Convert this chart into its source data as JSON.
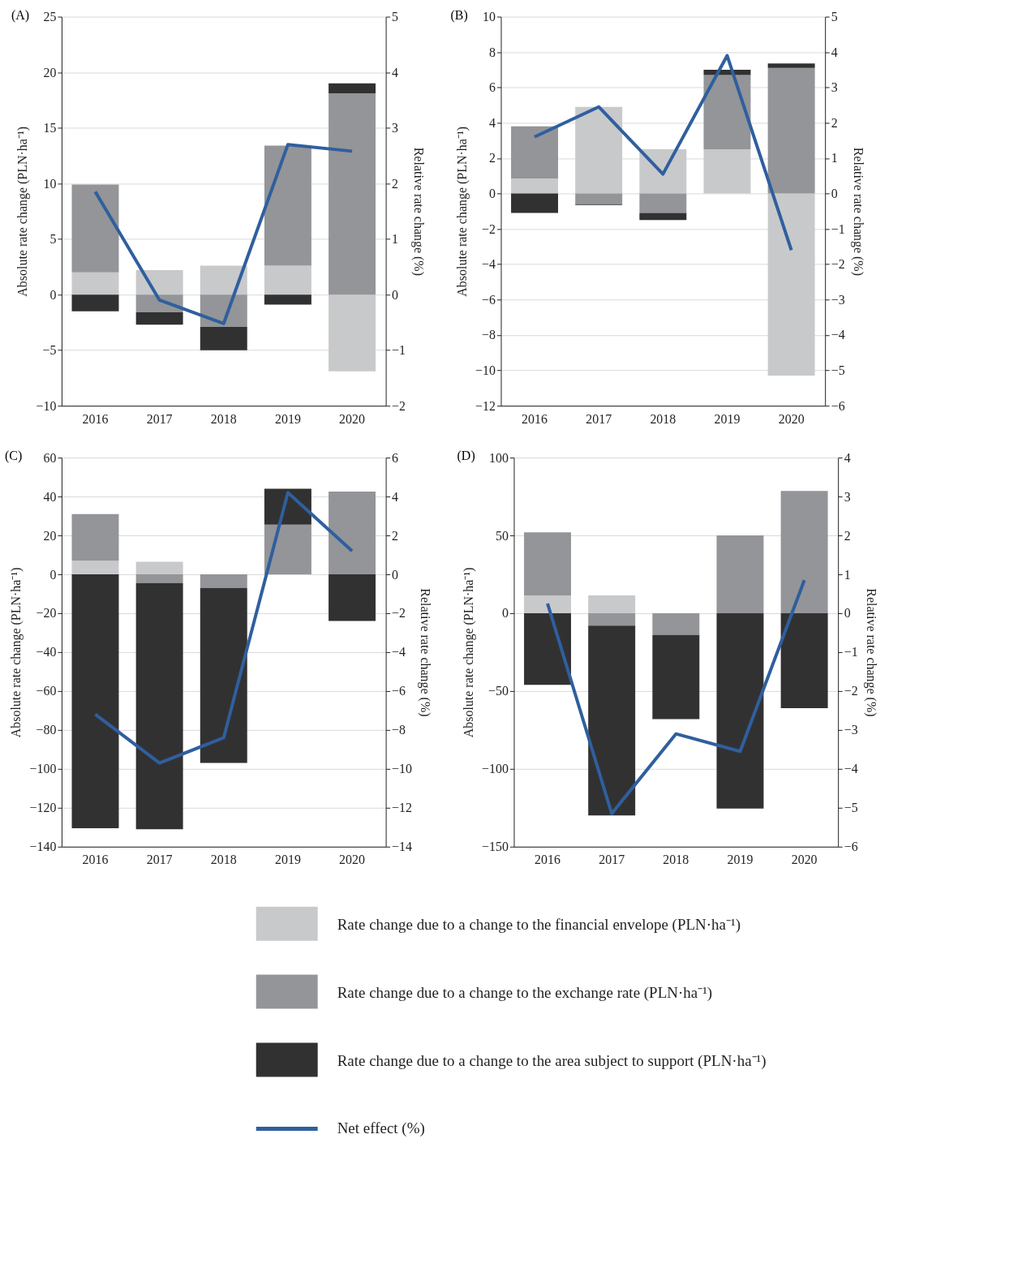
{
  "chart_data": [
    {
      "type": "bar",
      "title": "(A)",
      "stacked": true,
      "categories": [
        "2016",
        "2017",
        "2018",
        "2019",
        "2020"
      ],
      "ylabel": "Absolute rate change (PLN·ha⁻¹)",
      "y2label": "Relative rate change (%)",
      "ylim": [
        -10,
        25
      ],
      "yticks": [
        -10,
        -5,
        0,
        5,
        10,
        15,
        20,
        25
      ],
      "y2lim": [
        -2,
        5
      ],
      "y2ticks": [
        -2,
        -1,
        0,
        1,
        2,
        3,
        4,
        5
      ],
      "grid": "y",
      "legend": "bottom",
      "series": [
        {
          "name": "Rate change due to a change to the financial envelope (PLN·ha⁻¹)",
          "color": "#c8c9cb",
          "values": [
            2.0,
            2.2,
            2.6,
            2.6,
            -6.9
          ]
        },
        {
          "name": "Rate change due to a change to the exchange rate (PLN·ha⁻¹)",
          "color": "#939598",
          "values": [
            7.9,
            -1.6,
            -2.9,
            10.8,
            18.1
          ]
        },
        {
          "name": "Rate change due to a change to the area subject to support (PLN·ha⁻¹)",
          "color": "#323132",
          "values": [
            -1.5,
            -1.1,
            -2.1,
            -0.9,
            0.9
          ]
        },
        {
          "name": "Net effect (%)",
          "type": "line",
          "axis": "y2",
          "color": "#2f5f9e",
          "values": [
            1.85,
            -0.1,
            -0.52,
            2.7,
            2.58
          ]
        }
      ]
    },
    {
      "type": "bar",
      "title": "(B)",
      "stacked": true,
      "categories": [
        "2016",
        "2017",
        "2018",
        "2019",
        "2020"
      ],
      "ylabel": "Absolute rate change (PLN·ha⁻¹)",
      "y2label": "Relative rate change (%)",
      "ylim": [
        -12,
        10
      ],
      "yticks": [
        -12,
        -10,
        -8,
        -6,
        -4,
        -2,
        0,
        2,
        4,
        6,
        8,
        10
      ],
      "y2lim": [
        -6,
        5
      ],
      "y2ticks": [
        -6,
        -5,
        -4,
        -3,
        -2,
        -1,
        0,
        1,
        2,
        3,
        4,
        5
      ],
      "grid": "y",
      "series": [
        {
          "color": "#c8c9cb",
          "values": [
            0.85,
            4.9,
            2.5,
            2.5,
            -10.3
          ]
        },
        {
          "color": "#939598",
          "values": [
            2.95,
            -0.6,
            -1.1,
            4.2,
            7.1
          ]
        },
        {
          "color": "#323132",
          "values": [
            -1.1,
            -0.05,
            -0.4,
            0.3,
            0.25
          ]
        },
        {
          "type": "line",
          "axis": "y2",
          "color": "#2f5f9e",
          "values": [
            1.6,
            2.45,
            0.55,
            3.9,
            -1.6
          ]
        }
      ]
    },
    {
      "type": "bar",
      "title": "(C)",
      "stacked": true,
      "categories": [
        "2016",
        "2017",
        "2018",
        "2019",
        "2020"
      ],
      "ylabel": "Absolute rate change (PLN·ha⁻¹)",
      "y2label": "Relative rate change (%)",
      "ylim": [
        -140,
        60
      ],
      "yticks": [
        -140,
        -120,
        -100,
        -80,
        -60,
        -40,
        -20,
        0,
        20,
        40,
        60
      ],
      "y2lim": [
        -14,
        6
      ],
      "y2ticks": [
        -14,
        -12,
        -10,
        -8,
        -6,
        -4,
        -2,
        0,
        2,
        4,
        6
      ],
      "grid": "y",
      "series": [
        {
          "color": "#c8c9cb",
          "values": [
            7,
            6.5,
            null,
            null,
            null
          ]
        },
        {
          "color": "#939598",
          "values": [
            24,
            -4.5,
            -7,
            25.5,
            42.5
          ]
        },
        {
          "color": "#323132",
          "values": [
            -130.5,
            -126.5,
            -90,
            18.5,
            -24
          ]
        },
        {
          "type": "line",
          "axis": "y2",
          "color": "#2f5f9e",
          "values": [
            -7.2,
            -9.7,
            -8.4,
            4.2,
            1.2
          ]
        }
      ]
    },
    {
      "type": "bar",
      "title": "(D)",
      "stacked": true,
      "categories": [
        "2016",
        "2017",
        "2018",
        "2019",
        "2020"
      ],
      "ylabel": "Absolute rate change (PLN·ha⁻¹)",
      "y2label": "Relative rate change (%)",
      "ylim": [
        -150,
        100
      ],
      "yticks": [
        -150,
        -100,
        -50,
        0,
        50,
        100
      ],
      "y2lim": [
        -6,
        4
      ],
      "y2ticks": [
        -6,
        -5,
        -4,
        -3,
        -2,
        -1,
        0,
        1,
        2,
        3,
        4
      ],
      "grid": "y",
      "series": [
        {
          "color": "#c8c9cb",
          "values": [
            11.5,
            11.5,
            null,
            null,
            null
          ]
        },
        {
          "color": "#939598",
          "values": [
            40.5,
            -8,
            -14,
            50,
            78.5
          ]
        },
        {
          "color": "#323132",
          "values": [
            -46,
            -122,
            -54,
            -125.5,
            -61
          ]
        },
        {
          "type": "line",
          "axis": "y2",
          "color": "#2f5f9e",
          "values": [
            0.25,
            -5.15,
            -3.1,
            -3.55,
            0.85
          ]
        }
      ]
    }
  ]
}
